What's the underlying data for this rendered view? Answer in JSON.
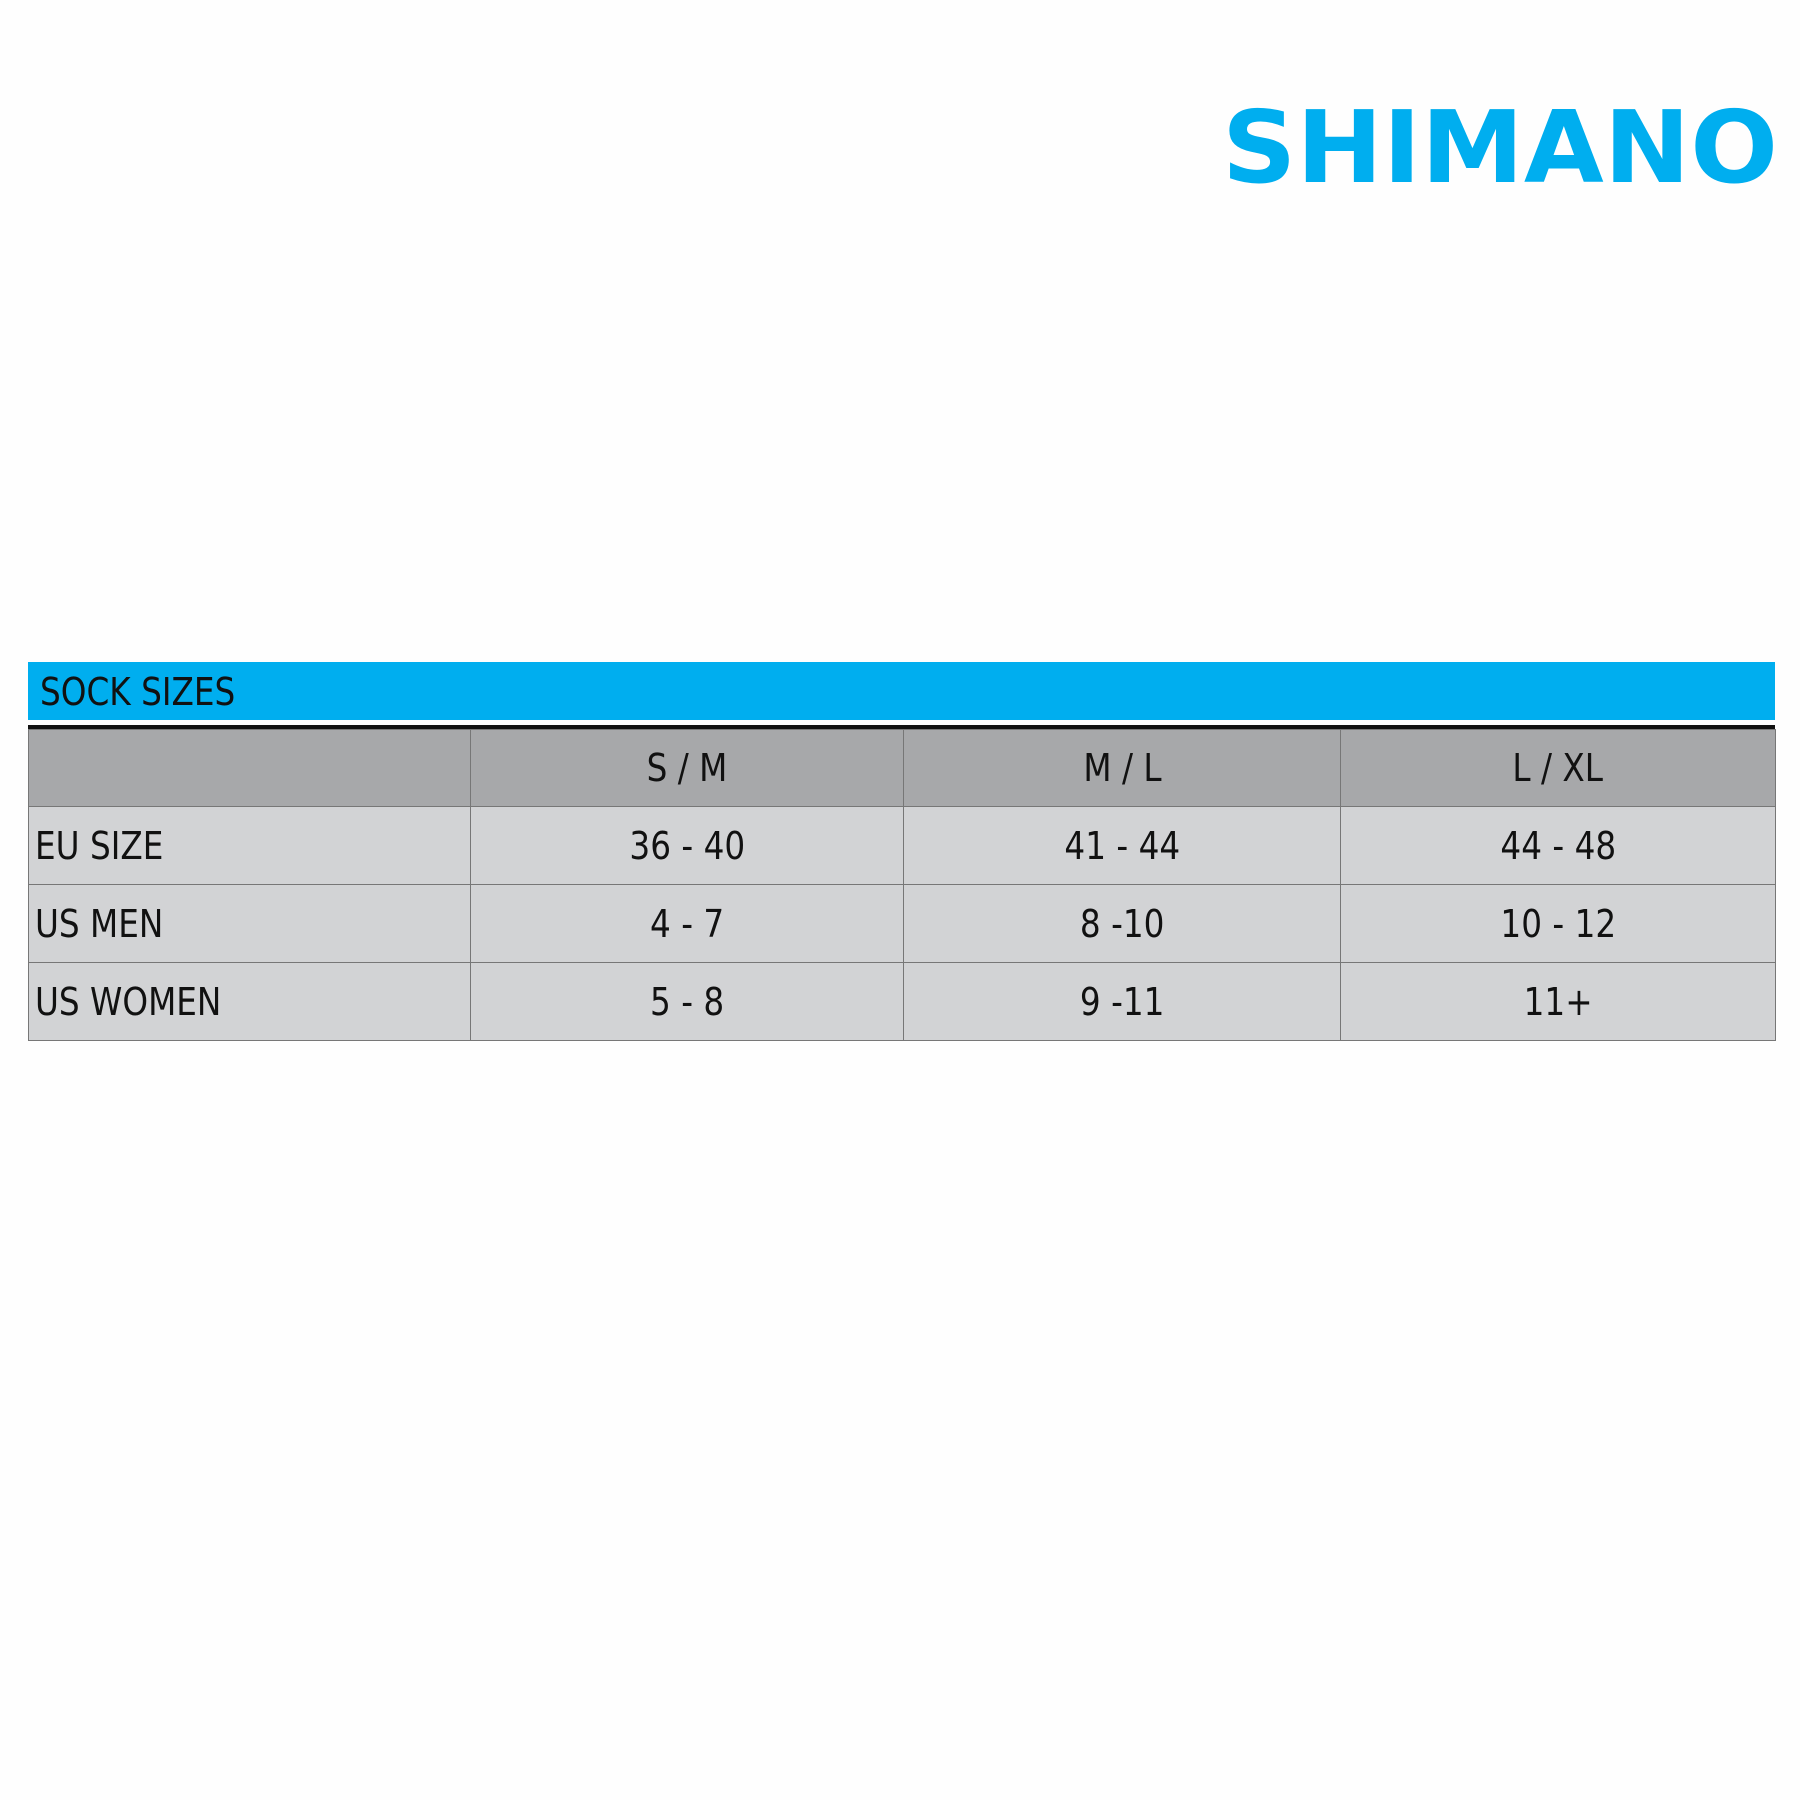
{
  "brand": {
    "logo_text": "SHIMANO",
    "color": "#00aeef"
  },
  "chart": {
    "title": "SOCK SIZES",
    "columns": [
      "",
      "S / M",
      "M / L",
      "L / XL"
    ],
    "rows": [
      {
        "label": "EU SIZE",
        "values": [
          "36 - 40",
          "41 - 44",
          "44 - 48"
        ]
      },
      {
        "label": "US MEN",
        "values": [
          "4 - 7",
          "8 -10",
          "10 - 12"
        ]
      },
      {
        "label": "US WOMEN",
        "values": [
          "5 - 8",
          "9 -11",
          "11+"
        ]
      }
    ],
    "colors": {
      "banner": "#00aeef",
      "header": "#a7a8aa",
      "body": "#d2d3d5"
    }
  }
}
